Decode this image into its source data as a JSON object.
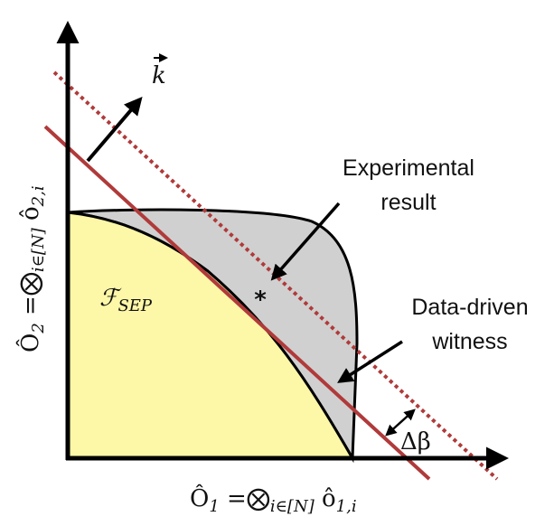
{
  "vector_label": "k",
  "region_label": {
    "main": "ℱ",
    "sub": "SEP"
  },
  "point_marker": "*",
  "annotations": {
    "experimental": [
      "Experimental",
      "result"
    ],
    "witness": [
      "Data-driven",
      "witness"
    ],
    "gap": "Δβ"
  },
  "x_axis_label": {
    "main": "Ô",
    "main_sub": "1",
    "op": " =⨂",
    "op_sub": "i∈[N]",
    "term": " ô",
    "term_sub": "1,i"
  },
  "y_axis_label": {
    "main": "Ô",
    "main_sub": "2",
    "op": " =⨂",
    "op_sub": "i∈[N]",
    "term": " ô",
    "term_sub": "2,i"
  }
}
